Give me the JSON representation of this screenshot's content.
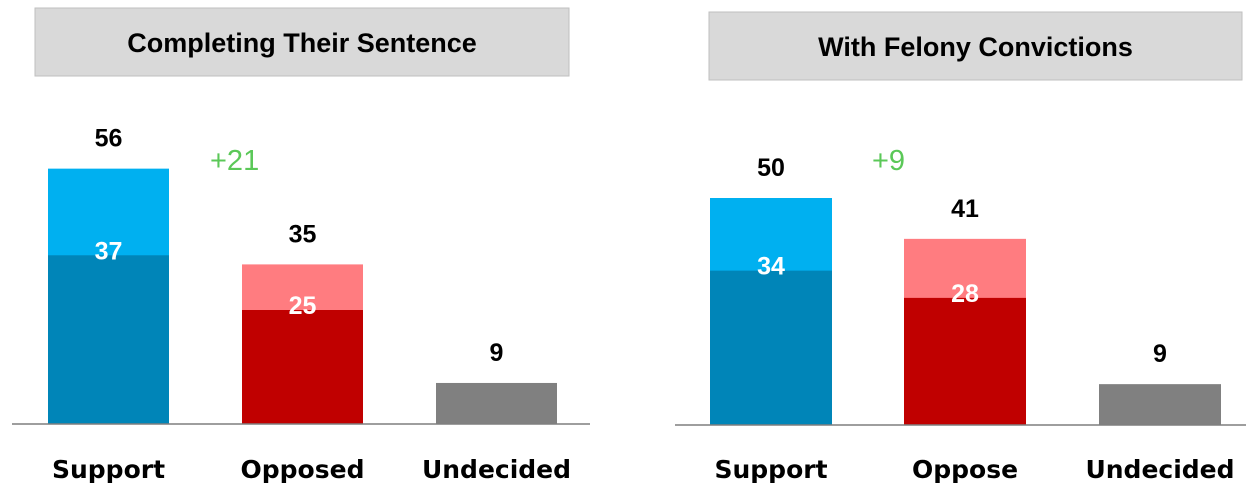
{
  "chart_data": [
    {
      "type": "bar",
      "title": "Completing Their Sentence",
      "categories": [
        "Support",
        "Opposed",
        "Undecided"
      ],
      "totals": [
        56,
        35,
        9
      ],
      "strong": [
        37,
        25,
        null
      ],
      "margin_label": "+21",
      "ylim": [
        0,
        70
      ],
      "grid": false
    },
    {
      "type": "bar",
      "title": "With Felony Convictions",
      "categories": [
        "Support",
        "Oppose",
        "Undecided"
      ],
      "totals": [
        50,
        41,
        9
      ],
      "strong": [
        34,
        28,
        null
      ],
      "margin_label": "+9",
      "ylim": [
        0,
        70
      ],
      "grid": false
    }
  ],
  "colors": {
    "support_total": "#00B0F0",
    "support_strong": "#0085B8",
    "oppose_total": "#FF7C80",
    "oppose_strong": "#C00000",
    "undecided": "#808080",
    "margin": "#5BC858",
    "title_box": "#D9D9D9"
  }
}
